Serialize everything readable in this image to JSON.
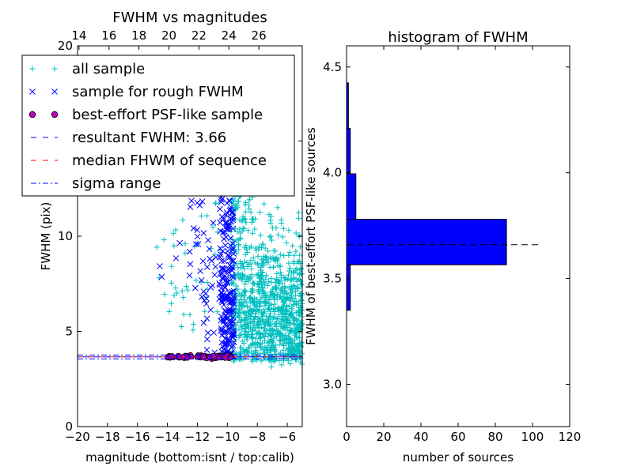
{
  "chart_data": [
    {
      "type": "scatter",
      "title": "FWHM vs magnitudes",
      "xlabel": "magnitude (bottom:isnt / top:calib)",
      "ylabel": "FWHM (pix)",
      "xlim": [
        -20,
        -5
      ],
      "ylim": [
        0,
        20
      ],
      "x_ticks": [
        -20,
        -18,
        -16,
        -14,
        -12,
        -10,
        -8,
        -6
      ],
      "x_tick_labels": [
        "−20",
        "−18",
        "−16",
        "−14",
        "−12",
        "−10",
        "−8",
        "−6"
      ],
      "y_ticks": [
        0,
        5,
        10,
        15,
        20
      ],
      "y_tick_labels": [
        "0",
        "5",
        "10",
        "15",
        "20"
      ],
      "top_axis": {
        "offset": 33.9,
        "ticks": [
          14,
          16,
          18,
          20,
          22,
          24,
          26
        ],
        "tick_labels": [
          "14",
          "16",
          "18",
          "20",
          "22",
          "24",
          "26"
        ]
      },
      "legend_position": "top-left",
      "series": [
        {
          "name": "all sample",
          "marker": "+",
          "color": "#00bfbf"
        },
        {
          "name": "sample for rough FWHM",
          "marker": "x",
          "color": "#0000ff"
        },
        {
          "name": "best-effort PSF-like sample",
          "marker": "o",
          "color": "#bf00bf",
          "edge": "#000000"
        },
        {
          "name": "resultant FWHM: 3.66",
          "line": "dashed",
          "color": "#0000ff",
          "y": 3.66
        },
        {
          "name": "median FHWM of sequence",
          "line": "dashed",
          "color": "#ff0000",
          "y": 3.66
        },
        {
          "name": "sigma range",
          "line": "dashdot",
          "color": "#0000ff",
          "y": [
            3.56,
            3.76
          ]
        }
      ]
    },
    {
      "type": "bar",
      "orientation": "horizontal",
      "title": "histogram of FWHM",
      "xlabel": "number of sources",
      "ylabel": "FWHM of best-effort PSF-like sources",
      "xlim": [
        0,
        120
      ],
      "ylim": [
        2.8,
        4.6
      ],
      "x_ticks": [
        0,
        20,
        40,
        60,
        80,
        100,
        120
      ],
      "x_tick_labels": [
        "0",
        "20",
        "40",
        "60",
        "80",
        "100",
        "120"
      ],
      "y_ticks": [
        3.0,
        3.5,
        4.0,
        4.5
      ],
      "y_tick_labels": [
        "3.0",
        "3.5",
        "4.0",
        "4.5"
      ],
      "bar_color": "#0000ff",
      "bins": [
        {
          "from": 3.35,
          "to": 3.565,
          "count": 2
        },
        {
          "from": 3.565,
          "to": 3.78,
          "count": 86
        },
        {
          "from": 3.78,
          "to": 3.995,
          "count": 5
        },
        {
          "from": 3.995,
          "to": 4.21,
          "count": 2
        },
        {
          "from": 4.21,
          "to": 4.425,
          "count": 1
        }
      ],
      "reference_line": {
        "y": 3.66,
        "x_range": [
          0,
          104
        ],
        "style": "dashed",
        "color": "#000000"
      }
    }
  ]
}
